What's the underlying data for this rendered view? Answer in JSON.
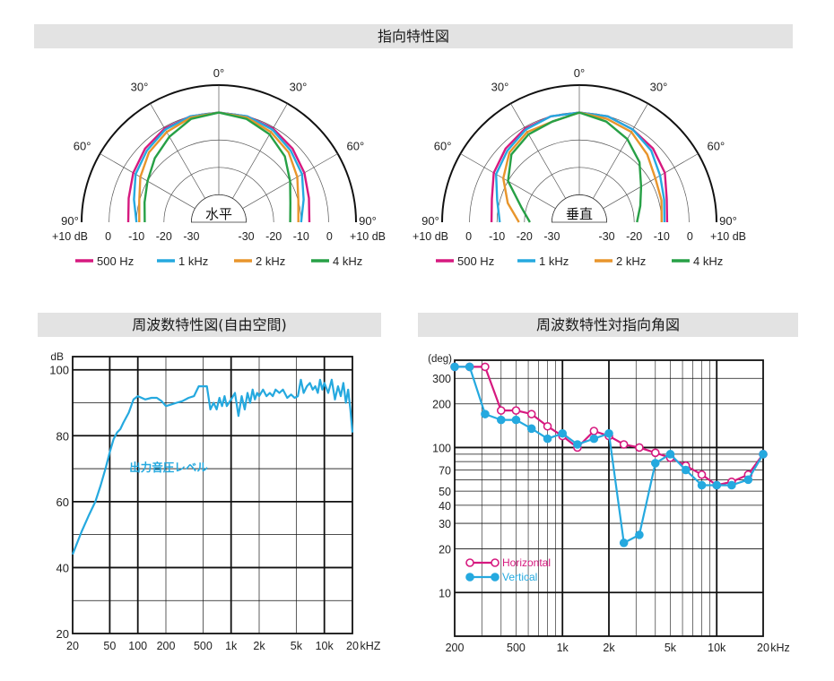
{
  "titles": {
    "directivity": "指向特性図",
    "freq_response": "周波数特性図(自由空間)",
    "freq_vs_angle": "周波数特性対指向角図"
  },
  "colors": {
    "c500": "#d6197f",
    "c1k": "#25a9df",
    "c2k": "#e8952c",
    "c4k": "#27a046",
    "horizontal": "#d6197f",
    "vertical": "#25a9df"
  },
  "chart_data": [
    {
      "type": "line",
      "subtype": "polar-half",
      "center_label": "水平",
      "angle_labels": [
        "0°",
        "30°",
        "30°",
        "60°",
        "60°",
        "90°",
        "90°"
      ],
      "radial_tick_labels": [
        "+10 dB",
        "0",
        "-10",
        "-20",
        "-30",
        "-30",
        "-20",
        "-10",
        "0",
        "+10 dB"
      ],
      "rlim": [
        -40,
        10
      ],
      "series": [
        {
          "name": "500 Hz",
          "angles": [
            -90,
            -75,
            -60,
            -45,
            -30,
            -15,
            0,
            15,
            30,
            45,
            60,
            75,
            90
          ],
          "values": [
            -7,
            -6,
            -4,
            -2,
            -0.5,
            0,
            0,
            0,
            -0.5,
            -2,
            -4,
            -6,
            -7
          ]
        },
        {
          "name": "1 kHz",
          "angles": [
            -90,
            -75,
            -60,
            -45,
            -30,
            -15,
            0,
            15,
            30,
            45,
            60,
            75,
            90
          ],
          "values": [
            -10,
            -8,
            -5,
            -3,
            -1,
            0,
            0,
            0,
            -1,
            -3,
            -5,
            -8,
            -10
          ]
        },
        {
          "name": "2 kHz",
          "angles": [
            -90,
            -75,
            -60,
            -45,
            -30,
            -15,
            0,
            15,
            30,
            45,
            60,
            75,
            90
          ],
          "values": [
            -11,
            -10,
            -7,
            -4,
            -2,
            -0.5,
            0,
            -0.5,
            -2,
            -4,
            -7,
            -10,
            -11
          ]
        },
        {
          "name": "4 kHz",
          "angles": [
            -90,
            -75,
            -60,
            -45,
            -30,
            -15,
            0,
            15,
            30,
            45,
            60,
            75,
            90
          ],
          "values": [
            -13,
            -12,
            -10,
            -7,
            -4,
            -1,
            0,
            -1,
            -3,
            -6,
            -10,
            -13,
            -14
          ]
        }
      ]
    },
    {
      "type": "line",
      "subtype": "polar-half",
      "center_label": "垂直",
      "angle_labels": [
        "0°",
        "30°",
        "30°",
        "60°",
        "60°",
        "90°",
        "90°"
      ],
      "radial_tick_labels": [
        "+10 dB",
        "0",
        "-10",
        "-20",
        "-30",
        "-30",
        "-20",
        "-10",
        "0",
        "+10 dB"
      ],
      "rlim": [
        -40,
        10
      ],
      "series": [
        {
          "name": "500 Hz",
          "angles": [
            -90,
            -75,
            -60,
            -45,
            -30,
            -15,
            0,
            15,
            30,
            45,
            60,
            75,
            90
          ],
          "values": [
            -8,
            -7,
            -4,
            -2,
            -0.5,
            0,
            0,
            0,
            -1,
            -2,
            -4,
            -7,
            -8
          ]
        },
        {
          "name": "1 kHz",
          "angles": [
            -90,
            -75,
            -60,
            -45,
            -30,
            -15,
            0,
            15,
            30,
            45,
            60,
            75,
            90
          ],
          "values": [
            -11,
            -9,
            -5,
            -3,
            -1,
            0,
            0,
            0,
            -1,
            -3,
            -6,
            -8,
            -9
          ]
        },
        {
          "name": "2 kHz",
          "angles": [
            -90,
            -75,
            -60,
            -45,
            -30,
            -15,
            0,
            15,
            30,
            45,
            60,
            75,
            90
          ],
          "values": [
            -18,
            -13,
            -8,
            -4,
            -2,
            -2,
            0,
            -1,
            -2,
            -5,
            -8,
            -9,
            -10
          ]
        },
        {
          "name": "4 kHz",
          "angles": [
            -90,
            -75,
            -60,
            -45,
            -30,
            -15,
            0,
            15,
            30,
            45,
            60,
            75,
            90
          ],
          "values": [
            -22,
            -18,
            -10,
            -5,
            -3,
            -2,
            0,
            -2,
            -5,
            -9,
            -14,
            -17,
            -19
          ]
        }
      ]
    },
    {
      "type": "line",
      "x_scale": "log",
      "xlim": [
        20,
        20000
      ],
      "ylim": [
        20,
        104
      ],
      "yunit": "dB",
      "xunit": "kHZ",
      "x_tick_labels": [
        "20",
        "50",
        "100",
        "200",
        "500",
        "1k",
        "2k",
        "5k",
        "10k",
        "20"
      ],
      "y_tick_labels": [
        "100",
        "80",
        "60",
        "40",
        "20"
      ],
      "annotation": "出力音圧レベル",
      "series": [
        {
          "name": "出力音圧レベル",
          "x": [
            20,
            25,
            30,
            35,
            40,
            45,
            50,
            55,
            60,
            65,
            70,
            80,
            90,
            100,
            110,
            120,
            140,
            160,
            180,
            200,
            230,
            260,
            300,
            350,
            400,
            450,
            500,
            550,
            600,
            650,
            700,
            750,
            800,
            850,
            900,
            1000,
            1100,
            1200,
            1300,
            1400,
            1500,
            1600,
            1700,
            1800,
            1900,
            2000,
            2200,
            2400,
            2600,
            2800,
            3000,
            3300,
            3600,
            4000,
            4400,
            4800,
            5200,
            5600,
            6000,
            6500,
            7000,
            7500,
            8000,
            8500,
            9000,
            9500,
            10000,
            11000,
            12000,
            13000,
            14000,
            15000,
            16000,
            17000,
            18000,
            19000,
            20000
          ],
          "values": [
            44,
            51,
            56,
            60,
            65,
            70,
            75,
            79,
            81,
            82,
            84,
            87,
            91,
            92,
            91.5,
            91,
            91.5,
            91.5,
            90.5,
            89,
            89.5,
            90,
            90.5,
            91.5,
            92,
            95,
            95,
            95,
            88,
            90,
            88,
            91.5,
            89,
            92,
            89,
            91,
            93,
            86,
            92,
            88,
            93,
            90,
            94,
            91,
            93,
            92,
            94,
            92,
            93,
            92,
            94,
            93,
            94,
            91.5,
            92.5,
            91.5,
            92,
            97,
            93,
            95,
            96,
            94,
            95,
            93,
            97,
            94,
            96,
            93,
            97,
            91,
            95,
            92,
            96,
            90,
            94,
            88,
            81
          ]
        }
      ]
    },
    {
      "type": "line",
      "x_scale": "log",
      "y_scale": "log",
      "xlim": [
        200,
        20000
      ],
      "ylim": [
        5,
        400
      ],
      "yunit": "(deg)",
      "xunit": "kHz",
      "x_tick_labels": [
        "200",
        "500",
        "1k",
        "2k",
        "5k",
        "10k",
        "20"
      ],
      "y_tick_labels": [
        "300",
        "200",
        "100",
        "70",
        "50",
        "40",
        "30",
        "20",
        "10"
      ],
      "series": [
        {
          "name": "Horizontal",
          "x": [
            200,
            250,
            315,
            400,
            500,
            630,
            800,
            1000,
            1250,
            1600,
            2000,
            2500,
            3150,
            4000,
            5000,
            6300,
            8000,
            10000,
            12500,
            16000,
            20000
          ],
          "values": [
            360,
            360,
            360,
            180,
            180,
            170,
            140,
            120,
            100,
            130,
            120,
            105,
            100,
            92,
            85,
            75,
            65,
            55,
            58,
            65,
            90
          ]
        },
        {
          "name": "Vertical",
          "x": [
            200,
            250,
            315,
            400,
            500,
            630,
            800,
            1000,
            1250,
            1600,
            2000,
            2500,
            3150,
            4000,
            5000,
            6300,
            8000,
            10000,
            12500,
            16000,
            20000
          ],
          "values": [
            360,
            360,
            170,
            155,
            155,
            135,
            115,
            125,
            105,
            115,
            125,
            22,
            25,
            78,
            90,
            70,
            55,
            55,
            55,
            60,
            90
          ]
        }
      ]
    }
  ]
}
